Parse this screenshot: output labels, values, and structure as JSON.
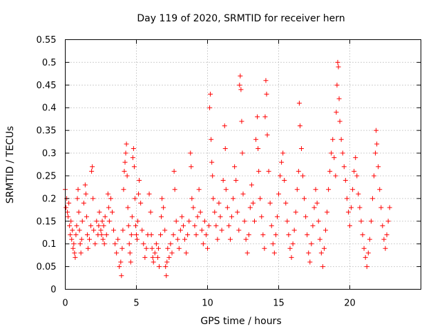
{
  "chart_data": {
    "type": "scatter",
    "title": "Day 119 of 2020, SRMTID for receiver hern",
    "xlabel": "GPS time / hours",
    "ylabel": "SRMTID / TECUs",
    "xlim": [
      0,
      25
    ],
    "ylim": [
      0,
      0.55
    ],
    "xticks": [
      0,
      5,
      10,
      15,
      20
    ],
    "xtick_labels": [
      "0",
      "5",
      "10",
      "15",
      "20"
    ],
    "yticks": [
      0,
      0.05,
      0.1,
      0.15,
      0.2,
      0.25,
      0.3,
      0.35,
      0.4,
      0.45,
      0.5,
      0.55
    ],
    "ytick_labels": [
      "0",
      "0.05",
      "0.1",
      "0.15",
      "0.2",
      "0.25",
      "0.3",
      "0.35",
      "0.4",
      "0.45",
      "0.5",
      "0.55"
    ],
    "grid": true,
    "marker": "+",
    "color": "#ff0000",
    "series": [
      {
        "name": "SRMTID",
        "points": [
          [
            0.0,
            0.22
          ],
          [
            0.05,
            0.18
          ],
          [
            0.1,
            0.2
          ],
          [
            0.15,
            0.17
          ],
          [
            0.2,
            0.16
          ],
          [
            0.25,
            0.19
          ],
          [
            0.3,
            0.14
          ],
          [
            0.35,
            0.12
          ],
          [
            0.4,
            0.15
          ],
          [
            0.45,
            0.11
          ],
          [
            0.5,
            0.13
          ],
          [
            0.55,
            0.09
          ],
          [
            0.6,
            0.1
          ],
          [
            0.65,
            0.08
          ],
          [
            0.7,
            0.07
          ],
          [
            0.75,
            0.12
          ],
          [
            0.8,
            0.14
          ],
          [
            0.85,
            0.2
          ],
          [
            0.9,
            0.22
          ],
          [
            0.95,
            0.17
          ],
          [
            1.0,
            0.13
          ],
          [
            1.05,
            0.1
          ],
          [
            1.1,
            0.08
          ],
          [
            1.15,
            0.11
          ],
          [
            1.2,
            0.15
          ],
          [
            1.3,
            0.19
          ],
          [
            1.4,
            0.23
          ],
          [
            1.45,
            0.21
          ],
          [
            1.5,
            0.16
          ],
          [
            1.55,
            0.12
          ],
          [
            1.6,
            0.09
          ],
          [
            1.7,
            0.11
          ],
          [
            1.8,
            0.14
          ],
          [
            1.85,
            0.26
          ],
          [
            1.9,
            0.27
          ],
          [
            1.95,
            0.2
          ],
          [
            2.0,
            0.13
          ],
          [
            2.1,
            0.1
          ],
          [
            2.2,
            0.15
          ],
          [
            2.3,
            0.12
          ],
          [
            2.35,
            0.14
          ],
          [
            2.4,
            0.17
          ],
          [
            2.5,
            0.13
          ],
          [
            2.55,
            0.12
          ],
          [
            2.6,
            0.15
          ],
          [
            2.65,
            0.11
          ],
          [
            2.7,
            0.14
          ],
          [
            2.75,
            0.1
          ],
          [
            2.8,
            0.16
          ],
          [
            2.9,
            0.12
          ],
          [
            3.0,
            0.21
          ],
          [
            3.05,
            0.18
          ],
          [
            3.1,
            0.15
          ],
          [
            3.2,
            0.2
          ],
          [
            3.3,
            0.17
          ],
          [
            3.4,
            0.13
          ],
          [
            3.5,
            0.1
          ],
          [
            3.6,
            0.08
          ],
          [
            3.7,
            0.11
          ],
          [
            3.8,
            0.05
          ],
          [
            3.9,
            0.06
          ],
          [
            3.95,
            0.03
          ],
          [
            4.0,
            0.09
          ],
          [
            4.05,
            0.13
          ],
          [
            4.1,
            0.22
          ],
          [
            4.15,
            0.26
          ],
          [
            4.2,
            0.28
          ],
          [
            4.25,
            0.3
          ],
          [
            4.3,
            0.32
          ],
          [
            4.35,
            0.25
          ],
          [
            4.4,
            0.18
          ],
          [
            4.45,
            0.14
          ],
          [
            4.5,
            0.1
          ],
          [
            4.55,
            0.08
          ],
          [
            4.6,
            0.06
          ],
          [
            4.65,
            0.12
          ],
          [
            4.7,
            0.16
          ],
          [
            4.75,
            0.29
          ],
          [
            4.8,
            0.31
          ],
          [
            4.85,
            0.27
          ],
          [
            4.9,
            0.2
          ],
          [
            4.95,
            0.14
          ],
          [
            5.0,
            0.12
          ],
          [
            5.05,
            0.11
          ],
          [
            5.1,
            0.15
          ],
          [
            5.15,
            0.21
          ],
          [
            5.2,
            0.24
          ],
          [
            5.3,
            0.19
          ],
          [
            5.4,
            0.13
          ],
          [
            5.5,
            0.1
          ],
          [
            5.6,
            0.07
          ],
          [
            5.7,
            0.09
          ],
          [
            5.8,
            0.12
          ],
          [
            5.9,
            0.21
          ],
          [
            6.0,
            0.17
          ],
          [
            6.05,
            0.12
          ],
          [
            6.1,
            0.09
          ],
          [
            6.15,
            0.07
          ],
          [
            6.2,
            0.06
          ],
          [
            6.3,
            0.08
          ],
          [
            6.4,
            0.1
          ],
          [
            6.5,
            0.07
          ],
          [
            6.55,
            0.09
          ],
          [
            6.6,
            0.05
          ],
          [
            6.7,
            0.12
          ],
          [
            6.75,
            0.16
          ],
          [
            6.8,
            0.2
          ],
          [
            6.9,
            0.18
          ],
          [
            7.0,
            0.13
          ],
          [
            7.05,
            0.05
          ],
          [
            7.1,
            0.03
          ],
          [
            7.15,
            0.06
          ],
          [
            7.2,
            0.09
          ],
          [
            7.3,
            0.07
          ],
          [
            7.4,
            0.1
          ],
          [
            7.5,
            0.08
          ],
          [
            7.6,
            0.12
          ],
          [
            7.65,
            0.26
          ],
          [
            7.7,
            0.22
          ],
          [
            7.8,
            0.15
          ],
          [
            7.9,
            0.11
          ],
          [
            8.0,
            0.09
          ],
          [
            8.1,
            0.13
          ],
          [
            8.2,
            0.16
          ],
          [
            8.3,
            0.14
          ],
          [
            8.4,
            0.11
          ],
          [
            8.5,
            0.08
          ],
          [
            8.6,
            0.12
          ],
          [
            8.7,
            0.15
          ],
          [
            8.8,
            0.3
          ],
          [
            8.85,
            0.27
          ],
          [
            8.9,
            0.2
          ],
          [
            9.0,
            0.18
          ],
          [
            9.1,
            0.14
          ],
          [
            9.2,
            0.12
          ],
          [
            9.3,
            0.16
          ],
          [
            9.4,
            0.22
          ],
          [
            9.5,
            0.17
          ],
          [
            9.6,
            0.13
          ],
          [
            9.7,
            0.1
          ],
          [
            9.8,
            0.15
          ],
          [
            9.9,
            0.12
          ],
          [
            10.0,
            0.09
          ],
          [
            10.1,
            0.14
          ],
          [
            10.15,
            0.4
          ],
          [
            10.2,
            0.43
          ],
          [
            10.25,
            0.33
          ],
          [
            10.3,
            0.28
          ],
          [
            10.35,
            0.25
          ],
          [
            10.4,
            0.2
          ],
          [
            10.5,
            0.17
          ],
          [
            10.6,
            0.14
          ],
          [
            10.7,
            0.11
          ],
          [
            10.8,
            0.19
          ],
          [
            10.9,
            0.16
          ],
          [
            11.0,
            0.13
          ],
          [
            11.1,
            0.24
          ],
          [
            11.2,
            0.36
          ],
          [
            11.25,
            0.31
          ],
          [
            11.3,
            0.22
          ],
          [
            11.4,
            0.18
          ],
          [
            11.5,
            0.14
          ],
          [
            11.6,
            0.11
          ],
          [
            11.7,
            0.16
          ],
          [
            11.8,
            0.2
          ],
          [
            11.9,
            0.27
          ],
          [
            12.0,
            0.24
          ],
          [
            12.1,
            0.17
          ],
          [
            12.2,
            0.13
          ],
          [
            12.25,
            0.45
          ],
          [
            12.3,
            0.47
          ],
          [
            12.35,
            0.44
          ],
          [
            12.4,
            0.37
          ],
          [
            12.45,
            0.3
          ],
          [
            12.5,
            0.21
          ],
          [
            12.6,
            0.15
          ],
          [
            12.7,
            0.11
          ],
          [
            12.8,
            0.08
          ],
          [
            12.9,
            0.12
          ],
          [
            13.0,
            0.18
          ],
          [
            13.1,
            0.23
          ],
          [
            13.2,
            0.19
          ],
          [
            13.3,
            0.15
          ],
          [
            13.4,
            0.33
          ],
          [
            13.5,
            0.38
          ],
          [
            13.55,
            0.31
          ],
          [
            13.6,
            0.26
          ],
          [
            13.7,
            0.2
          ],
          [
            13.8,
            0.16
          ],
          [
            13.9,
            0.12
          ],
          [
            14.0,
            0.09
          ],
          [
            14.05,
            0.38
          ],
          [
            14.1,
            0.46
          ],
          [
            14.15,
            0.43
          ],
          [
            14.2,
            0.34
          ],
          [
            14.3,
            0.26
          ],
          [
            14.4,
            0.19
          ],
          [
            14.5,
            0.14
          ],
          [
            14.6,
            0.1
          ],
          [
            14.7,
            0.08
          ],
          [
            14.8,
            0.12
          ],
          [
            14.9,
            0.16
          ],
          [
            15.0,
            0.21
          ],
          [
            15.1,
            0.25
          ],
          [
            15.2,
            0.28
          ],
          [
            15.3,
            0.3
          ],
          [
            15.4,
            0.24
          ],
          [
            15.5,
            0.19
          ],
          [
            15.6,
            0.15
          ],
          [
            15.7,
            0.12
          ],
          [
            15.8,
            0.09
          ],
          [
            15.9,
            0.07
          ],
          [
            16.0,
            0.1
          ],
          [
            16.1,
            0.13
          ],
          [
            16.2,
            0.17
          ],
          [
            16.3,
            0.22
          ],
          [
            16.4,
            0.26
          ],
          [
            16.45,
            0.41
          ],
          [
            16.5,
            0.36
          ],
          [
            16.6,
            0.31
          ],
          [
            16.7,
            0.25
          ],
          [
            16.8,
            0.2
          ],
          [
            16.9,
            0.16
          ],
          [
            17.0,
            0.12
          ],
          [
            17.1,
            0.08
          ],
          [
            17.2,
            0.06
          ],
          [
            17.3,
            0.1
          ],
          [
            17.4,
            0.14
          ],
          [
            17.5,
            0.18
          ],
          [
            17.6,
            0.22
          ],
          [
            17.7,
            0.19
          ],
          [
            17.8,
            0.15
          ],
          [
            17.9,
            0.11
          ],
          [
            18.0,
            0.08
          ],
          [
            18.1,
            0.05
          ],
          [
            18.2,
            0.09
          ],
          [
            18.3,
            0.13
          ],
          [
            18.4,
            0.17
          ],
          [
            18.5,
            0.22
          ],
          [
            18.6,
            0.26
          ],
          [
            18.7,
            0.3
          ],
          [
            18.8,
            0.33
          ],
          [
            18.9,
            0.29
          ],
          [
            19.0,
            0.25
          ],
          [
            19.05,
            0.39
          ],
          [
            19.1,
            0.45
          ],
          [
            19.15,
            0.5
          ],
          [
            19.2,
            0.49
          ],
          [
            19.25,
            0.42
          ],
          [
            19.3,
            0.37
          ],
          [
            19.4,
            0.33
          ],
          [
            19.5,
            0.3
          ],
          [
            19.6,
            0.27
          ],
          [
            19.7,
            0.24
          ],
          [
            19.8,
            0.2
          ],
          [
            19.9,
            0.17
          ],
          [
            20.0,
            0.14
          ],
          [
            20.1,
            0.18
          ],
          [
            20.2,
            0.22
          ],
          [
            20.3,
            0.26
          ],
          [
            20.4,
            0.29
          ],
          [
            20.5,
            0.25
          ],
          [
            20.6,
            0.21
          ],
          [
            20.7,
            0.18
          ],
          [
            20.8,
            0.15
          ],
          [
            20.9,
            0.12
          ],
          [
            21.0,
            0.09
          ],
          [
            21.1,
            0.07
          ],
          [
            21.2,
            0.05
          ],
          [
            21.3,
            0.08
          ],
          [
            21.4,
            0.11
          ],
          [
            21.5,
            0.15
          ],
          [
            21.6,
            0.2
          ],
          [
            21.7,
            0.25
          ],
          [
            21.8,
            0.3
          ],
          [
            21.85,
            0.35
          ],
          [
            21.9,
            0.32
          ],
          [
            22.0,
            0.27
          ],
          [
            22.1,
            0.22
          ],
          [
            22.2,
            0.18
          ],
          [
            22.3,
            0.14
          ],
          [
            22.4,
            0.11
          ],
          [
            22.5,
            0.09
          ],
          [
            22.6,
            0.12
          ],
          [
            22.7,
            0.15
          ],
          [
            22.8,
            0.18
          ]
        ]
      }
    ]
  }
}
